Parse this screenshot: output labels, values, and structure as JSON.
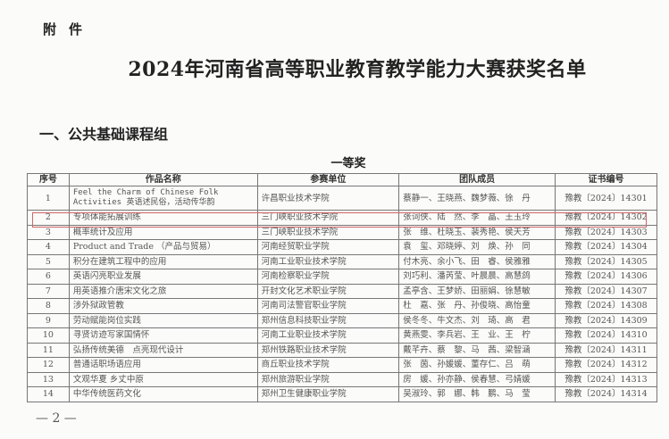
{
  "attachment_label": "附件",
  "title": "2024年河南省高等职业教育教学能力大赛获奖名单",
  "section": "一、公共基础课程组",
  "prize_level": "一等奖",
  "table": {
    "headers": [
      "序号",
      "作品名称",
      "参赛单位",
      "团队成员",
      "证书编号"
    ],
    "rows": [
      [
        "1",
        "Feel the Charm of Chinese Folk Activities 英语述民俗，活动传华韵",
        "许昌职业技术学院",
        "蔡静一、王晓燕、魏梦薇、徐　丹",
        "豫教〔2024〕14301"
      ],
      [
        "2",
        "专项体能拓展训练",
        "三门峡职业技术学院",
        "张词侠、陆　然、李　晶、王玉玲",
        "豫教〔2024〕14302"
      ],
      [
        "3",
        "概率统计及应用",
        "三门峡职业技术学院",
        "张　维、杜晓玉、裴秀艳、侯天芳",
        "豫教〔2024〕14303"
      ],
      [
        "4",
        "Product and Trade （产品与贸易）",
        "河南经贸职业学院",
        "袁　玺、邓晓婷、刘　焕、孙　同",
        "豫教〔2024〕14304"
      ],
      [
        "5",
        "积分在建筑工程中的应用",
        "河南工业职业技术学院",
        "付木亮、余小飞、田　睿、侯雅雅",
        "豫教〔2024〕14305"
      ],
      [
        "6",
        "英语闪亮职业发展",
        "河南检察职业学院",
        "刘巧利、潘芮莹、叶晨晨、高慧鸽",
        "豫教〔2024〕14306"
      ],
      [
        "7",
        "用英语推介唐宋文化之旅",
        "开封文化艺术职业学院",
        "孟亭含、王梦娇、田丽娟、徐慧敏",
        "豫教〔2024〕14307"
      ],
      [
        "8",
        "涉外狱政管教",
        "河南司法警官职业学院",
        "杜　嘉、张　丹、孙俊晓、高怡童",
        "豫教〔2024〕14308"
      ],
      [
        "9",
        "劳动赋能岗位实践",
        "郑州信息科技职业学院",
        "侯冬冬、牛文杰、刘　琦、高　君",
        "豫教〔2024〕14309"
      ],
      [
        "10",
        "寻贤访迹写家国情怀",
        "河南工业职业技术学院",
        "黄燕雯、李兵岩、王　业、王　柠",
        "豫教〔2024〕14310"
      ],
      [
        "11",
        "弘扬传统美德　点亮现代设计",
        "郑州铁路职业技术学院",
        "戴芊卉、蔡　黎、马　茜、梁智涵",
        "豫教〔2024〕14311"
      ],
      [
        "12",
        "普通话职场语应用",
        "商丘职业技术学院",
        "张　茵、孙媛媛、董存仁、吕　萌",
        "豫教〔2024〕14312"
      ],
      [
        "13",
        "文观华夏 乡丈中原",
        "郑州旅游职业学院",
        "房　媛、孙亦静、侯春慧、弓婧媛",
        "豫教〔2024〕14313"
      ],
      [
        "14",
        "中华传统医药文化",
        "郑州卫生健康职业学院",
        "吴淑玲、郭　娜、韩　鹏、马　莹",
        "豫教〔2024〕14314"
      ]
    ]
  },
  "footer_page": "— 2 —",
  "highlight_color": "#cc6666"
}
